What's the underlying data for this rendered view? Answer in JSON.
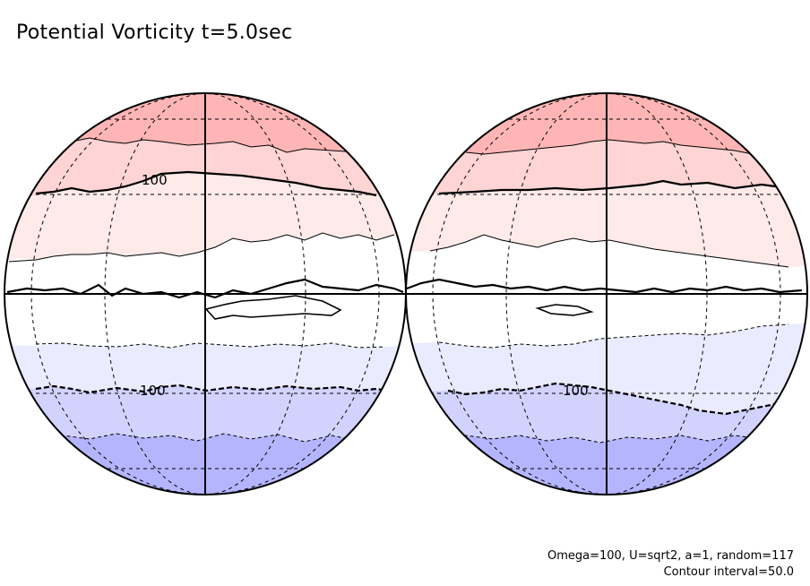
{
  "figure": {
    "title": "Potential Vorticity t=5.0sec",
    "params_line": "Omega=100, U=sqrt2, a=1, random=117",
    "contour_line": "Contour interval=50.0"
  },
  "colors": {
    "north_band_1": "#ffb5b5",
    "north_band_2": "#ffd4d4",
    "north_band_3": "#ffeaea",
    "neutral_band": "#ffffff",
    "south_band_1": "#ebebff",
    "south_band_2": "#d2d2ff",
    "south_band_3": "#b5b5ff",
    "contour_line": "#000000"
  },
  "globes": [
    {
      "name": "left-hemisphere",
      "contour_labels": [
        {
          "text": "100",
          "hemisphere": "north"
        },
        {
          "text": "100",
          "hemisphere": "south"
        }
      ]
    },
    {
      "name": "right-hemisphere",
      "contour_labels": [
        {
          "text": "100",
          "hemisphere": "south"
        }
      ]
    }
  ]
}
